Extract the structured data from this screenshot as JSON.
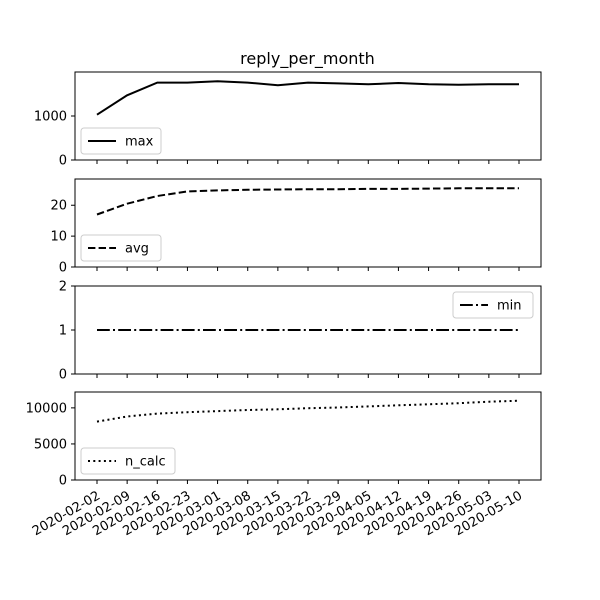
{
  "chart_data": {
    "type": "line",
    "title": "reply_per_month",
    "x": [
      "2020-02-02",
      "2020-02-09",
      "2020-02-16",
      "2020-02-23",
      "2020-03-01",
      "2020-03-08",
      "2020-03-15",
      "2020-03-22",
      "2020-03-29",
      "2020-04-05",
      "2020-04-12",
      "2020-04-19",
      "2020-04-26",
      "2020-05-03",
      "2020-05-10"
    ],
    "panels": [
      {
        "series": [
          {
            "name": "max",
            "style": "solid",
            "values": [
              1030,
              1470,
              1760,
              1760,
              1790,
              1760,
              1700,
              1760,
              1740,
              1720,
              1750,
              1720,
              1710,
              1720,
              1720
            ]
          }
        ],
        "ylim": [
          0,
          2000
        ],
        "yticks": [
          0,
          1000
        ],
        "legend": "lower-left"
      },
      {
        "series": [
          {
            "name": "avg",
            "style": "dashed",
            "values": [
              17.0,
              20.5,
              23.0,
              24.5,
              24.8,
              25.0,
              25.1,
              25.2,
              25.2,
              25.3,
              25.3,
              25.4,
              25.5,
              25.5,
              25.5
            ]
          }
        ],
        "ylim": [
          0,
          28.5
        ],
        "yticks": [
          0,
          10,
          20
        ],
        "legend": "lower-left"
      },
      {
        "series": [
          {
            "name": "min",
            "style": "dashdot",
            "values": [
              1,
              1,
              1,
              1,
              1,
              1,
              1,
              1,
              1,
              1,
              1,
              1,
              1,
              1,
              1
            ]
          }
        ],
        "ylim": [
          0,
          2
        ],
        "yticks": [
          0,
          1,
          2
        ],
        "legend": "upper-right"
      },
      {
        "series": [
          {
            "name": "n_calc",
            "style": "dotted",
            "values": [
              8100,
              8800,
              9200,
              9400,
              9550,
              9700,
              9800,
              9950,
              10050,
              10200,
              10350,
              10500,
              10650,
              10850,
              11000
            ]
          }
        ],
        "ylim": [
          0,
          12200
        ],
        "yticks": [
          0,
          5000,
          10000
        ],
        "legend": "lower-left"
      }
    ],
    "grid": false
  }
}
